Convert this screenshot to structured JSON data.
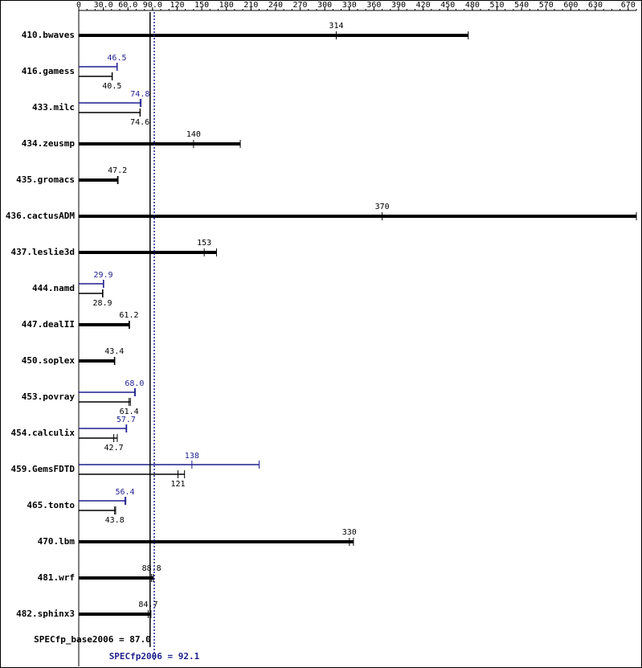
{
  "chart_data": {
    "type": "bar",
    "orientation": "horizontal",
    "categories": [
      "410.bwaves",
      "416.gamess",
      "433.milc",
      "434.zeusmp",
      "435.gromacs",
      "436.cactusADM",
      "437.leslie3d",
      "444.namd",
      "447.dealII",
      "450.soplex",
      "453.povray",
      "454.calculix",
      "459.GemsFDTD",
      "465.tonto",
      "470.lbm",
      "481.wrf",
      "482.sphinx3"
    ],
    "series": [
      {
        "color": "#000000",
        "values": [
          314,
          40.5,
          74.6,
          140,
          47.2,
          370,
          153,
          28.9,
          61.2,
          43.4,
          61.4,
          42.7,
          121,
          43.8,
          330,
          88.8,
          84.7
        ],
        "value_labels": [
          "314",
          "40.5",
          "74.6",
          "140",
          "47.2",
          "370",
          "153",
          "28.9",
          "61.2",
          "43.4",
          "61.4",
          "42.7",
          "121",
          "43.8",
          "330",
          "88.8",
          "84.7"
        ],
        "bar_ends": [
          475,
          41,
          75,
          197,
          48,
          680,
          168,
          29.5,
          62,
          44,
          63,
          47,
          129,
          45,
          335,
          91,
          88
        ]
      },
      {
        "color": "#1f1f8f",
        "values": [
          null,
          46.5,
          74.8,
          null,
          null,
          null,
          null,
          29.9,
          null,
          null,
          68.0,
          57.7,
          138,
          56.4,
          null,
          null,
          null
        ],
        "value_labels": [
          null,
          "46.5",
          "74.8",
          null,
          null,
          null,
          null,
          "29.9",
          null,
          null,
          "68.0",
          "57.7",
          "138",
          "56.4",
          null,
          null,
          null
        ],
        "bar_ends": [
          null,
          47,
          76,
          null,
          null,
          null,
          null,
          30.5,
          null,
          null,
          69,
          58.5,
          220,
          57.5,
          null,
          null,
          null
        ]
      }
    ],
    "xlim": [
      0,
      680
    ],
    "xticks": [
      0,
      {
        "value": 30,
        "label": "30.0"
      },
      {
        "value": 60,
        "label": "60.0"
      },
      {
        "value": 90,
        "label": "90.0"
      },
      120,
      150,
      180,
      210,
      240,
      270,
      300,
      330,
      360,
      390,
      420,
      450,
      480,
      510,
      540,
      570,
      600,
      630,
      670
    ],
    "reference_lines": [
      {
        "label": "SPECfp_base2006 = 87.0",
        "value": 87.0,
        "color": "#000000",
        "style": "solid"
      },
      {
        "label": "SPECfp2006 = 92.1",
        "value": 92.1,
        "color": "#1f1f8f",
        "style": "dotted"
      }
    ]
  }
}
